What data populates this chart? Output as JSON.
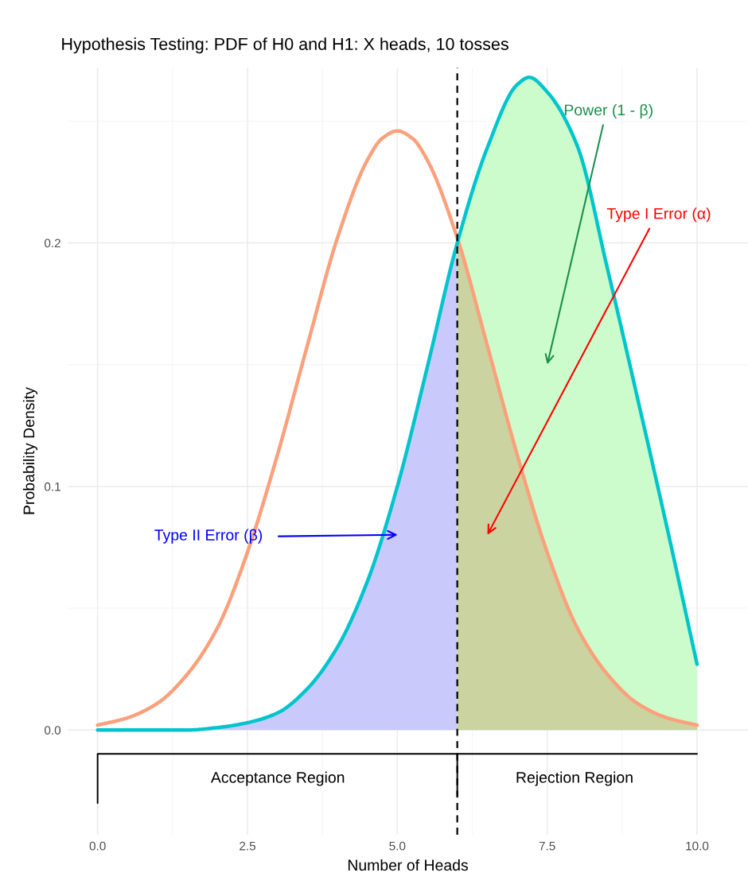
{
  "chart_data": {
    "type": "line",
    "title": "Hypothesis Testing: PDF of H0 and H1: X heads, 10 tosses",
    "xlabel": "Number of Heads",
    "ylabel": "Probability Density",
    "series": [
      {
        "type": "area",
        "color": "#c9c9fb",
        "x": [
          0,
          0.5,
          1,
          1.5,
          2,
          2.5,
          3,
          3.5,
          4,
          4.5,
          5,
          5.5,
          6
        ],
        "values": [
          0,
          0,
          0,
          0,
          0.001,
          0.003,
          0.007,
          0.017,
          0.034,
          0.061,
          0.1,
          0.149,
          0.2
        ]
      },
      {
        "type": "area",
        "color": "#ccfccc",
        "x": [
          6,
          6.5,
          7,
          7.2,
          7.5,
          8,
          8.5,
          9,
          9.5,
          10
        ],
        "values": [
          0.2,
          0.239,
          0.265,
          0.268,
          0.262,
          0.24,
          0.19,
          0.137,
          0.083,
          0.027
        ]
      },
      {
        "type": "area",
        "color": "#cbd3a0",
        "x": [
          6,
          6.5,
          7,
          7.5,
          8,
          8.5,
          9,
          9.5,
          10
        ],
        "values": [
          0.202,
          0.158,
          0.113,
          0.073,
          0.042,
          0.023,
          0.011,
          0.005,
          0.002
        ]
      },
      {
        "color": "#000000",
        "x": [
          0,
          0,
          10
        ],
        "values": [
          -0.03,
          -0.0098,
          -0.0098
        ]
      },
      {
        "color": "#000000",
        "x": [
          6,
          6
        ],
        "values": [
          -0.0098,
          -0.027
        ]
      },
      {
        "color": "#fca07c",
        "x": [
          0,
          0.5,
          1,
          1.5,
          2,
          2.5,
          3,
          3.5,
          4,
          4.5,
          4.75,
          5,
          5.25,
          5.5,
          6,
          6.5,
          7,
          7.5,
          8,
          8.5,
          9,
          9.5,
          10
        ],
        "values": [
          0.002,
          0.005,
          0.011,
          0.023,
          0.042,
          0.073,
          0.113,
          0.158,
          0.202,
          0.234,
          0.243,
          0.246,
          0.243,
          0.234,
          0.202,
          0.158,
          0.113,
          0.073,
          0.042,
          0.023,
          0.011,
          0.005,
          0.002
        ]
      },
      {
        "color": "#00c5cd",
        "x": [
          0,
          0.5,
          1,
          1.5,
          2,
          2.5,
          3,
          3.5,
          4,
          4.5,
          5,
          5.5,
          6,
          6.5,
          7,
          7.2,
          7.5,
          8,
          8.5,
          9,
          9.5,
          10
        ],
        "values": [
          0,
          0,
          0,
          0,
          0.001,
          0.003,
          0.007,
          0.017,
          0.034,
          0.061,
          0.1,
          0.149,
          0.2,
          0.239,
          0.265,
          0.268,
          0.262,
          0.24,
          0.19,
          0.137,
          0.083,
          0.027
        ]
      }
    ],
    "xlim": [
      -0.5,
      10.85
    ],
    "ylim": [
      -0.043,
      0.272
    ],
    "xticks": [
      {
        "value": 0,
        "label": "0.0"
      },
      {
        "value": 2.5,
        "label": "2.5"
      },
      {
        "value": 5,
        "label": "5.0"
      },
      {
        "value": 7.5,
        "label": "7.5"
      },
      {
        "value": 10,
        "label": "10.0"
      }
    ],
    "yticks": [
      {
        "value": 0,
        "label": "0.0"
      },
      {
        "value": 0.1,
        "label": "0.1"
      },
      {
        "value": 0.2,
        "label": "0.2"
      }
    ],
    "grid": true,
    "line_style": "solid",
    "marker": "none",
    "ref_lines": [
      {
        "axis": "x",
        "value": 6,
        "color": "#000000",
        "line_style": "dashed"
      }
    ],
    "annotations": [
      "Power (1 - β)",
      "Type I Error (α)",
      "Type II Error (β)",
      "Acceptance Region",
      "Rejection Region"
    ]
  }
}
